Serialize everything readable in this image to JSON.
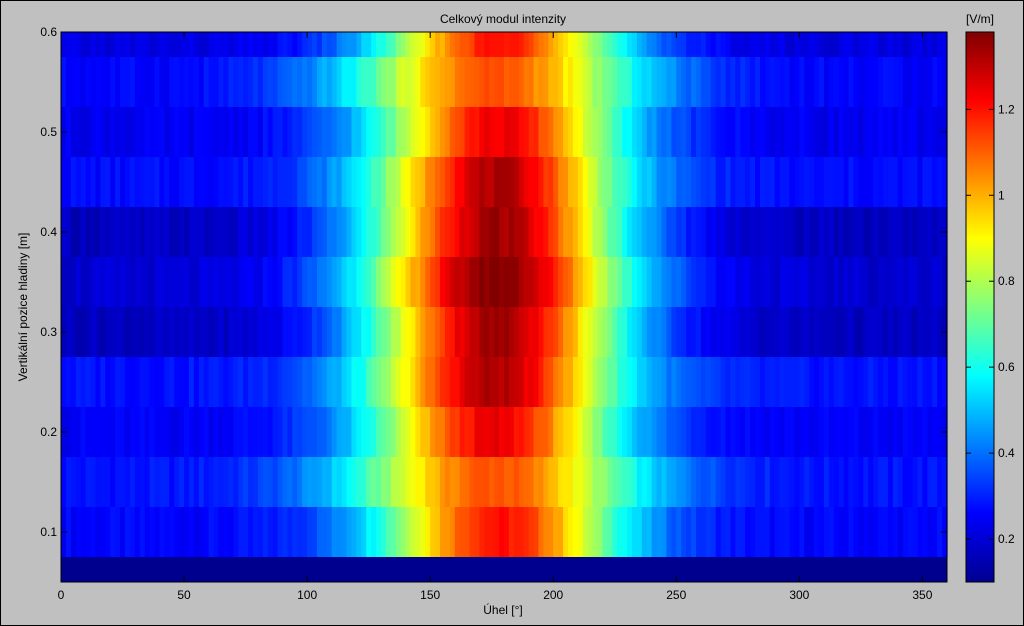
{
  "chart_data": {
    "type": "heatmap",
    "title": "Celkový modul intenzity",
    "xlabel": "Úhel [°]",
    "ylabel": "Vertikální pozice hladiny [m]",
    "colorbar_label": "[V/m]",
    "colormap": "jet",
    "xlim": [
      0,
      360
    ],
    "ylim": [
      0.05,
      0.6
    ],
    "clim": [
      0.1,
      1.38
    ],
    "xticks": [
      "0",
      "50",
      "100",
      "150",
      "200",
      "250",
      "300",
      "350"
    ],
    "yticks": [
      "0.1",
      "0.2",
      "0.3",
      "0.4",
      "0.5",
      "0.6"
    ],
    "colorbar_ticks": [
      "0.2",
      "0.4",
      "0.6",
      "0.8",
      "1",
      "1.2"
    ],
    "rows": [
      {
        "y": 0.1,
        "background": 0.26,
        "peak": 1.2,
        "center": 178,
        "width": 50
      },
      {
        "y": 0.15,
        "background": 0.28,
        "peak": 1.12,
        "center": 176,
        "width": 58
      },
      {
        "y": 0.2,
        "background": 0.25,
        "peak": 1.24,
        "center": 176,
        "width": 50
      },
      {
        "y": 0.25,
        "background": 0.28,
        "peak": 1.32,
        "center": 176,
        "width": 50
      },
      {
        "y": 0.3,
        "background": 0.18,
        "peak": 1.34,
        "center": 177,
        "width": 52
      },
      {
        "y": 0.35,
        "background": 0.2,
        "peak": 1.38,
        "center": 177,
        "width": 54
      },
      {
        "y": 0.4,
        "background": 0.18,
        "peak": 1.34,
        "center": 177,
        "width": 52
      },
      {
        "y": 0.45,
        "background": 0.27,
        "peak": 1.32,
        "center": 177,
        "width": 50
      },
      {
        "y": 0.5,
        "background": 0.24,
        "peak": 1.24,
        "center": 178,
        "width": 50
      },
      {
        "y": 0.55,
        "background": 0.26,
        "peak": 1.12,
        "center": 176,
        "width": 58
      },
      {
        "y": 0.6,
        "background": 0.22,
        "peak": 1.2,
        "center": 178,
        "width": 50
      }
    ]
  }
}
